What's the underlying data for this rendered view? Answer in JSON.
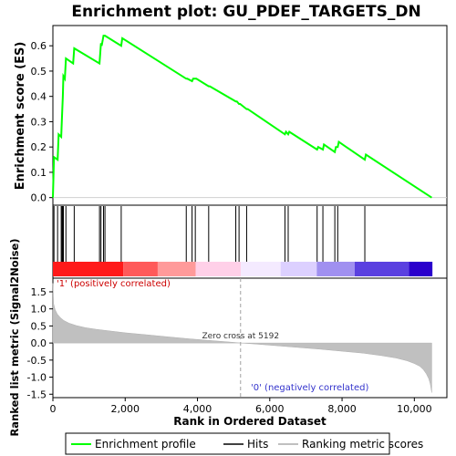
{
  "chart_data": {
    "type": "line",
    "title": "Enrichment plot: GU_PDEF_TARGETS_DN",
    "top_panel": {
      "ylabel": "Enrichment score (ES)",
      "ylim": [
        -0.03,
        0.68
      ],
      "yticks": [
        "0.0",
        "0.1",
        "0.2",
        "0.3",
        "0.4",
        "0.5",
        "0.6"
      ],
      "ytick_values": [
        0.0,
        0.1,
        0.2,
        0.3,
        0.4,
        0.5,
        0.6
      ],
      "series": [
        {
          "name": "Enrichment profile",
          "color": "#00ff00",
          "x": [
            0,
            30,
            130,
            160,
            230,
            255,
            275,
            290,
            330,
            360,
            560,
            590,
            1290,
            1310,
            1330,
            1350,
            1400,
            1440,
            1890,
            1920,
            3690,
            3720,
            3850,
            3880,
            3940,
            3970,
            4310,
            4340,
            5060,
            5090,
            5150,
            5180,
            5360,
            5390,
            6420,
            6450,
            6510,
            6540,
            7310,
            7340,
            7470,
            7500,
            7800,
            7830,
            7880,
            7910,
            8630,
            8660,
            10480
          ],
          "y": [
            0.0,
            0.16,
            0.15,
            0.25,
            0.24,
            0.33,
            0.4,
            0.48,
            0.47,
            0.55,
            0.53,
            0.59,
            0.53,
            0.57,
            0.61,
            0.6,
            0.64,
            0.64,
            0.6,
            0.63,
            0.47,
            0.47,
            0.46,
            0.47,
            0.47,
            0.47,
            0.44,
            0.44,
            0.38,
            0.38,
            0.37,
            0.37,
            0.35,
            0.35,
            0.25,
            0.26,
            0.25,
            0.26,
            0.19,
            0.2,
            0.19,
            0.21,
            0.18,
            0.2,
            0.2,
            0.22,
            0.15,
            0.17,
            0.0
          ]
        }
      ]
    },
    "hits": {
      "name": "Hits",
      "x": [
        30,
        130,
        230,
        255,
        275,
        290,
        360,
        590,
        1290,
        1330,
        1400,
        1440,
        1890,
        3690,
        3850,
        3940,
        4310,
        5060,
        5150,
        5360,
        6420,
        6510,
        7310,
        7470,
        7800,
        7880,
        8630
      ]
    },
    "color_bar": {
      "segments": [
        {
          "from": 0,
          "to": 1950,
          "color": "#ff1a1a"
        },
        {
          "from": 1950,
          "to": 2900,
          "color": "#ff5a5a"
        },
        {
          "from": 2900,
          "to": 3950,
          "color": "#ff9a9a"
        },
        {
          "from": 3950,
          "to": 5200,
          "color": "#ffd0e8"
        },
        {
          "from": 5200,
          "to": 6300,
          "color": "#f4eaff"
        },
        {
          "from": 6300,
          "to": 7300,
          "color": "#dcd0ff"
        },
        {
          "from": 7300,
          "to": 8350,
          "color": "#a090f0"
        },
        {
          "from": 8350,
          "to": 9850,
          "color": "#5a40e0"
        },
        {
          "from": 9850,
          "to": 10500,
          "color": "#2a00cc"
        }
      ]
    },
    "bottom_panel": {
      "ylabel": "Ranked list metric (Signal2Noise)",
      "xlabel": "Rank in Ordered Dataset",
      "ylim": [
        -1.6,
        1.9
      ],
      "yticks": [
        "1.5",
        "1.0",
        "0.5",
        "0.0",
        "-0.5",
        "-1.0",
        "-1.5"
      ],
      "ytick_values": [
        1.5,
        1.0,
        0.5,
        0.0,
        -0.5,
        -1.0,
        -1.5
      ],
      "series": [
        {
          "name": "Ranking metric scores",
          "color": "#c0c0c0",
          "x": [
            0,
            20,
            60,
            120,
            200,
            300,
            450,
            650,
            900,
            1200,
            1600,
            2000,
            2600,
            3200,
            3800,
            4400,
            5000,
            5192,
            5600,
            6200,
            6800,
            7400,
            8000,
            8600,
            9100,
            9500,
            9800,
            10000,
            10150,
            10250,
            10330,
            10400,
            10440,
            10480
          ],
          "y": [
            1.75,
            1.15,
            0.98,
            0.85,
            0.75,
            0.66,
            0.58,
            0.51,
            0.45,
            0.4,
            0.35,
            0.3,
            0.24,
            0.18,
            0.12,
            0.07,
            0.02,
            0.0,
            -0.03,
            -0.08,
            -0.13,
            -0.18,
            -0.24,
            -0.3,
            -0.37,
            -0.44,
            -0.52,
            -0.6,
            -0.68,
            -0.78,
            -0.9,
            -1.05,
            -1.2,
            -1.45
          ]
        }
      ],
      "zero_cross_label": "Zero cross at 5192",
      "zero_cross": 5192,
      "pos_label": "'1' (positively correlated)",
      "neg_label": "'0' (negatively correlated)"
    },
    "xlim": [
      0,
      10900
    ],
    "xticks": [
      "0",
      "2,000",
      "4,000",
      "6,000",
      "8,000",
      "10,000"
    ],
    "xtick_values": [
      0,
      2000,
      4000,
      6000,
      8000,
      10000
    ],
    "legend": {
      "placement": "bottom",
      "items": [
        "Enrichment profile",
        "Hits",
        "Ranking metric scores"
      ]
    }
  }
}
